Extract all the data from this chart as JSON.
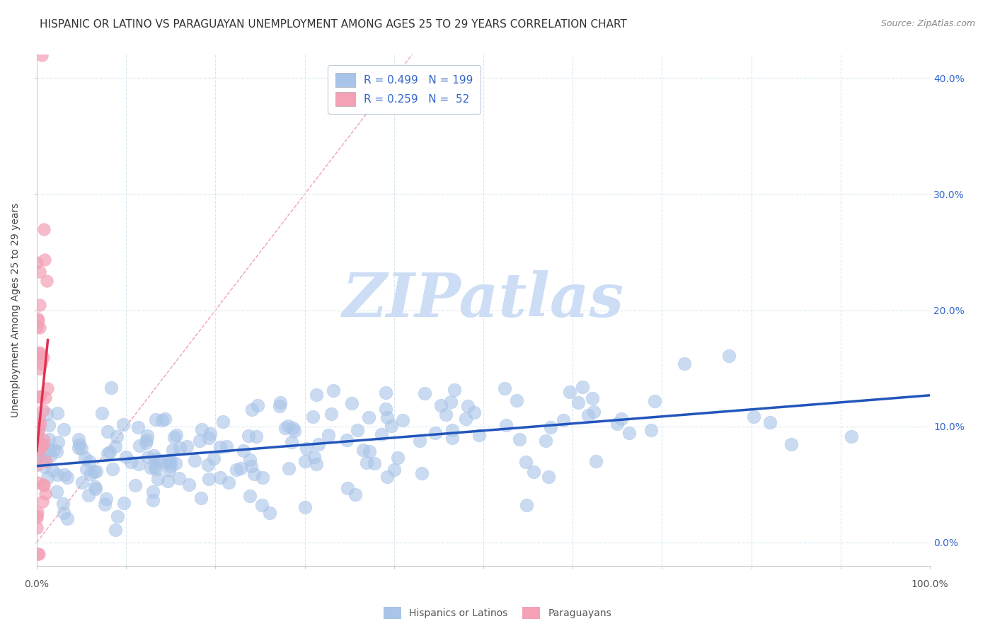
{
  "title": "HISPANIC OR LATINO VS PARAGUAYAN UNEMPLOYMENT AMONG AGES 25 TO 29 YEARS CORRELATION CHART",
  "source": "Source: ZipAtlas.com",
  "ylabel": "Unemployment Among Ages 25 to 29 years",
  "xlim": [
    0.0,
    1.0
  ],
  "ylim": [
    -0.02,
    0.42
  ],
  "yplot_min": 0.0,
  "yplot_max": 0.42,
  "xticks": [
    0.0,
    0.1,
    0.2,
    0.3,
    0.4,
    0.5,
    0.6,
    0.7,
    0.8,
    0.9,
    1.0
  ],
  "yticks": [
    0.0,
    0.1,
    0.2,
    0.3,
    0.4
  ],
  "xticklabels": [
    "0.0%",
    "",
    "",
    "",
    "",
    "",
    "",
    "",
    "",
    "",
    "100.0%"
  ],
  "yticklabels_right": [
    "0.0%",
    "10.0%",
    "20.0%",
    "30.0%",
    "40.0%"
  ],
  "blue_R": 0.499,
  "blue_N": 199,
  "pink_R": 0.259,
  "pink_N": 52,
  "blue_color": "#a8c4e8",
  "pink_color": "#f4a0b5",
  "blue_line_color": "#2255bb",
  "pink_line_color": "#e03050",
  "diag_line_color": "#f0a0b8",
  "legend_text_color": "#3366cc",
  "watermark_color": "#ccddf5",
  "watermark_text": "ZIPatlas",
  "background_color": "#ffffff",
  "grid_color": "#d8e8f0",
  "title_fontsize": 11,
  "source_fontsize": 9,
  "ylabel_fontsize": 10,
  "tick_fontsize": 9,
  "legend_fontsize": 11
}
